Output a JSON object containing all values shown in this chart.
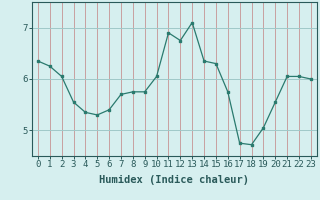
{
  "x": [
    0,
    1,
    2,
    3,
    4,
    5,
    6,
    7,
    8,
    9,
    10,
    11,
    12,
    13,
    14,
    15,
    16,
    17,
    18,
    19,
    20,
    21,
    22,
    23
  ],
  "y": [
    6.35,
    6.25,
    6.05,
    5.55,
    5.35,
    5.3,
    5.4,
    5.7,
    5.75,
    5.75,
    6.05,
    6.9,
    6.75,
    7.1,
    6.35,
    6.3,
    5.75,
    4.75,
    4.72,
    5.05,
    5.55,
    6.05,
    6.05,
    6.0
  ],
  "line_color": "#2a7a6e",
  "marker": "s",
  "marker_size": 2,
  "bg_color": "#d6efef",
  "grid_color_v": "#c8a0a0",
  "grid_color_h": "#a0c8c8",
  "xlabel": "Humidex (Indice chaleur)",
  "xlim": [
    -0.5,
    23.5
  ],
  "ylim": [
    4.5,
    7.5
  ],
  "yticks": [
    5,
    6,
    7
  ],
  "xticks": [
    0,
    1,
    2,
    3,
    4,
    5,
    6,
    7,
    8,
    9,
    10,
    11,
    12,
    13,
    14,
    15,
    16,
    17,
    18,
    19,
    20,
    21,
    22,
    23
  ],
  "xlabel_fontsize": 7.5,
  "tick_fontsize": 6.5,
  "axis_color": "#2a5a5a"
}
